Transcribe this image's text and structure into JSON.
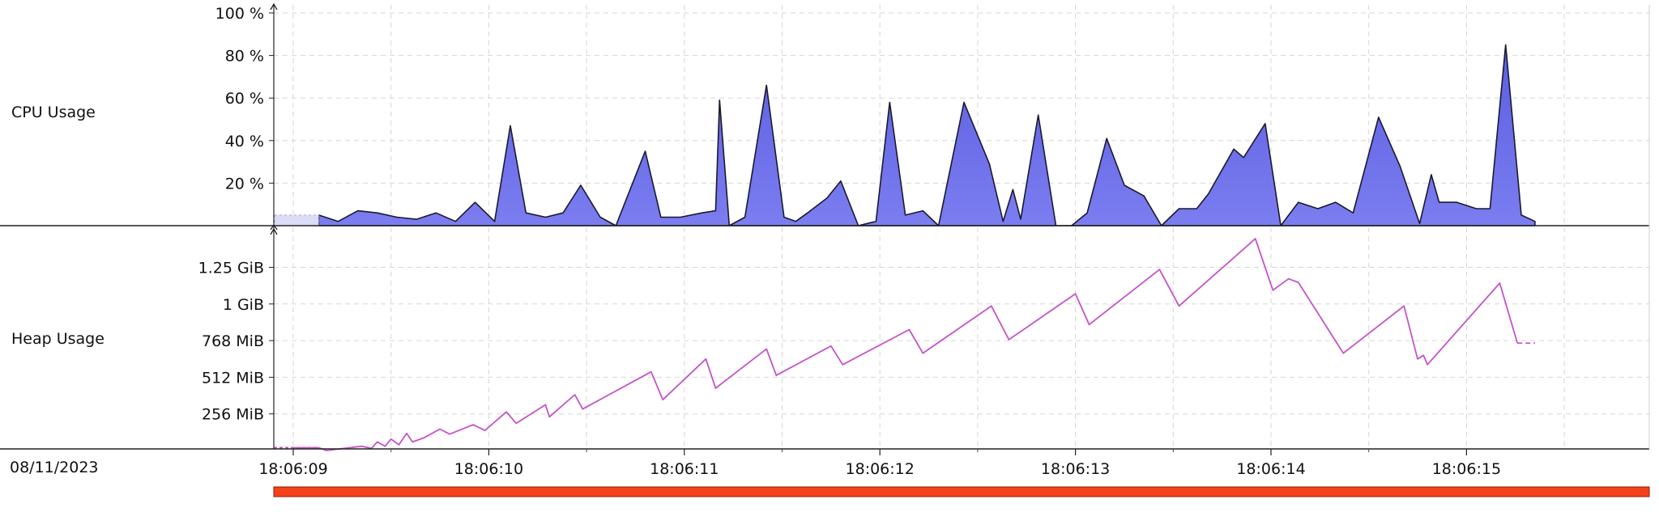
{
  "labels": {
    "cpu": "CPU Usage",
    "heap": "Heap Usage",
    "date": "08/11/2023"
  },
  "colors": {
    "cpu_fill": "#7b7df0",
    "cpu_stroke": "#1a1a2e",
    "heap_line": "#c354c8",
    "grid": "#d6d6d6",
    "range_bar": "#f5421a"
  },
  "chart_data": [
    {
      "type": "area",
      "name": "cpu-usage",
      "ylim": [
        0,
        100
      ],
      "yticks": [
        {
          "value": 20,
          "label": "20 %"
        },
        {
          "value": 40,
          "label": "40 %"
        },
        {
          "value": 60,
          "label": "60 %"
        },
        {
          "value": 80,
          "label": "80 %"
        },
        {
          "value": 100,
          "label": "100 %"
        }
      ],
      "points": [
        [
          0.13,
          5
        ],
        [
          0.23,
          2
        ],
        [
          0.33,
          7
        ],
        [
          0.43,
          6
        ],
        [
          0.53,
          4
        ],
        [
          0.63,
          3
        ],
        [
          0.73,
          6
        ],
        [
          0.83,
          2
        ],
        [
          0.93,
          11
        ],
        [
          1.03,
          2
        ],
        [
          1.11,
          47
        ],
        [
          1.19,
          6
        ],
        [
          1.29,
          4
        ],
        [
          1.38,
          6
        ],
        [
          1.47,
          19
        ],
        [
          1.57,
          4
        ],
        [
          1.65,
          0
        ],
        [
          1.8,
          35
        ],
        [
          1.88,
          4
        ],
        [
          1.98,
          4
        ],
        [
          2.09,
          6
        ],
        [
          2.16,
          7
        ],
        [
          2.18,
          59
        ],
        [
          2.23,
          0
        ],
        [
          2.31,
          4
        ],
        [
          2.42,
          66
        ],
        [
          2.51,
          4
        ],
        [
          2.57,
          2
        ],
        [
          2.63,
          6
        ],
        [
          2.73,
          13
        ],
        [
          2.8,
          21
        ],
        [
          2.89,
          0
        ],
        [
          2.98,
          2
        ],
        [
          3.05,
          58
        ],
        [
          3.13,
          5
        ],
        [
          3.22,
          7
        ],
        [
          3.3,
          0
        ],
        [
          3.43,
          58
        ],
        [
          3.56,
          29
        ],
        [
          3.63,
          2
        ],
        [
          3.68,
          17
        ],
        [
          3.72,
          3
        ],
        [
          3.81,
          52
        ],
        [
          3.9,
          0
        ],
        [
          3.98,
          0
        ],
        [
          4.06,
          6
        ],
        [
          4.16,
          41
        ],
        [
          4.25,
          19
        ],
        [
          4.35,
          14
        ],
        [
          4.44,
          0
        ],
        [
          4.53,
          8
        ],
        [
          4.62,
          8
        ],
        [
          4.68,
          15
        ],
        [
          4.81,
          36
        ],
        [
          4.86,
          32
        ],
        [
          4.97,
          48
        ],
        [
          5.05,
          0
        ],
        [
          5.14,
          11
        ],
        [
          5.24,
          8
        ],
        [
          5.33,
          11
        ],
        [
          5.42,
          6
        ],
        [
          5.55,
          51
        ],
        [
          5.66,
          28
        ],
        [
          5.76,
          1
        ],
        [
          5.82,
          24
        ],
        [
          5.86,
          11
        ],
        [
          5.95,
          11
        ],
        [
          6.05,
          8
        ],
        [
          6.12,
          8
        ],
        [
          6.2,
          85
        ],
        [
          6.28,
          5
        ],
        [
          6.35,
          2
        ]
      ]
    },
    {
      "type": "line",
      "name": "heap-usage",
      "ylim_mib": [
        0,
        1500
      ],
      "yticks": [
        {
          "value": 256,
          "label": "256 MiB"
        },
        {
          "value": 512,
          "label": "512 MiB"
        },
        {
          "value": 768,
          "label": "768 MiB"
        },
        {
          "value": 1024,
          "label": "1 GiB"
        },
        {
          "value": 1280,
          "label": "1.25 GiB"
        }
      ],
      "points": [
        [
          0.0,
          20
        ],
        [
          0.13,
          20
        ],
        [
          0.17,
          0
        ],
        [
          0.35,
          30
        ],
        [
          0.4,
          15
        ],
        [
          0.43,
          60
        ],
        [
          0.47,
          30
        ],
        [
          0.5,
          80
        ],
        [
          0.54,
          40
        ],
        [
          0.58,
          120
        ],
        [
          0.61,
          60
        ],
        [
          0.67,
          90
        ],
        [
          0.75,
          150
        ],
        [
          0.8,
          115
        ],
        [
          0.92,
          180
        ],
        [
          0.98,
          140
        ],
        [
          1.09,
          270
        ],
        [
          1.14,
          190
        ],
        [
          1.29,
          320
        ],
        [
          1.31,
          235
        ],
        [
          1.44,
          390
        ],
        [
          1.48,
          290
        ],
        [
          1.83,
          550
        ],
        [
          1.89,
          355
        ],
        [
          2.11,
          640
        ],
        [
          2.16,
          435
        ],
        [
          2.42,
          710
        ],
        [
          2.47,
          525
        ],
        [
          2.75,
          730
        ],
        [
          2.81,
          600
        ],
        [
          3.15,
          845
        ],
        [
          3.22,
          680
        ],
        [
          3.57,
          1010
        ],
        [
          3.66,
          775
        ],
        [
          4.0,
          1095
        ],
        [
          4.07,
          880
        ],
        [
          4.43,
          1265
        ],
        [
          4.53,
          1010
        ],
        [
          4.92,
          1480
        ],
        [
          5.01,
          1120
        ],
        [
          5.09,
          1200
        ],
        [
          5.14,
          1175
        ],
        [
          5.37,
          680
        ],
        [
          5.68,
          1010
        ],
        [
          5.75,
          640
        ],
        [
          5.78,
          665
        ],
        [
          5.8,
          600
        ],
        [
          6.17,
          1170
        ],
        [
          6.26,
          750
        ]
      ],
      "tail_dashed": [
        [
          6.26,
          750
        ],
        [
          6.35,
          750
        ]
      ]
    }
  ],
  "x_axis": {
    "ticks": [
      {
        "value": 0,
        "label": "18:06:09"
      },
      {
        "value": 1,
        "label": "18:06:10"
      },
      {
        "value": 2,
        "label": "18:06:11"
      },
      {
        "value": 3,
        "label": "18:06:12"
      },
      {
        "value": 4,
        "label": "18:06:13"
      },
      {
        "value": 5,
        "label": "18:06:14"
      },
      {
        "value": 6,
        "label": "18:06:15"
      }
    ],
    "range": [
      0,
      6.35
    ]
  }
}
